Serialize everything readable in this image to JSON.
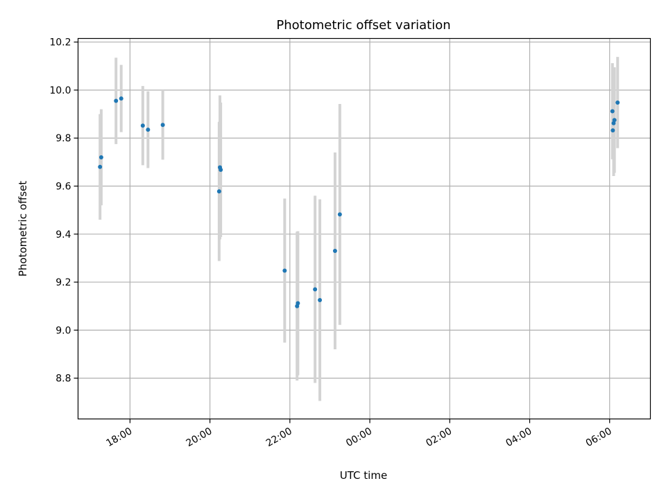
{
  "chart_data": {
    "type": "scatter",
    "title": "Photometric offset variation",
    "xlabel": "UTC time",
    "ylabel": "Photometric offset",
    "x_tick_labels": [
      "18:00",
      "20:00",
      "22:00",
      "00:00",
      "02:00",
      "04:00",
      "06:00"
    ],
    "x_tick_hours": [
      18,
      20,
      22,
      24,
      26,
      28,
      30
    ],
    "xlim_hours": [
      16.7,
      31.02
    ],
    "y_ticks": [
      8.8,
      9.0,
      9.2,
      9.4,
      9.6,
      9.8,
      10.0,
      10.2
    ],
    "y_tick_labels": [
      "8.8",
      "9.0",
      "9.2",
      "9.4",
      "9.6",
      "9.8",
      "10.0",
      "10.2"
    ],
    "ylim": [
      8.63,
      10.215
    ],
    "grid": true,
    "colors": {
      "point": "#1f77b4",
      "errorbar": "#d3d3d3",
      "grid": "#b0b0b0"
    },
    "points": [
      {
        "time": "17:15",
        "t": 17.25,
        "y": 9.68,
        "err": 0.22
      },
      {
        "time": "17:17",
        "t": 17.28,
        "y": 9.72,
        "err": 0.2
      },
      {
        "time": "17:39",
        "t": 17.65,
        "y": 9.955,
        "err": 0.18
      },
      {
        "time": "17:47",
        "t": 17.78,
        "y": 9.965,
        "err": 0.14
      },
      {
        "time": "18:19",
        "t": 18.32,
        "y": 9.852,
        "err": 0.165
      },
      {
        "time": "18:27",
        "t": 18.45,
        "y": 9.835,
        "err": 0.16
      },
      {
        "time": "18:49",
        "t": 18.82,
        "y": 9.855,
        "err": 0.145
      },
      {
        "time": "20:14",
        "t": 20.23,
        "y": 9.578,
        "err": 0.29
      },
      {
        "time": "20:15",
        "t": 20.25,
        "y": 9.678,
        "err": 0.3
      },
      {
        "time": "20:16",
        "t": 20.27,
        "y": 9.668,
        "err": 0.28
      },
      {
        "time": "21:52",
        "t": 21.87,
        "y": 9.248,
        "err": 0.3
      },
      {
        "time": "22:11",
        "t": 22.18,
        "y": 9.1,
        "err": 0.31
      },
      {
        "time": "22:12",
        "t": 22.2,
        "y": 9.112,
        "err": 0.3
      },
      {
        "time": "22:38",
        "t": 22.63,
        "y": 9.17,
        "err": 0.39
      },
      {
        "time": "22:45",
        "t": 22.75,
        "y": 9.125,
        "err": 0.42
      },
      {
        "time": "23:08",
        "t": 23.13,
        "y": 9.33,
        "err": 0.41
      },
      {
        "time": "23:15",
        "t": 23.25,
        "y": 9.482,
        "err": 0.46
      },
      {
        "time": "06:04",
        "t": 30.07,
        "y": 9.912,
        "err": 0.2
      },
      {
        "time": "06:05",
        "t": 30.08,
        "y": 9.832,
        "err": 0.12
      },
      {
        "time": "06:06",
        "t": 30.1,
        "y": 9.862,
        "err": 0.22
      },
      {
        "time": "06:07",
        "t": 30.12,
        "y": 9.875,
        "err": 0.22
      },
      {
        "time": "06:12",
        "t": 30.2,
        "y": 9.948,
        "err": 0.19
      }
    ]
  }
}
